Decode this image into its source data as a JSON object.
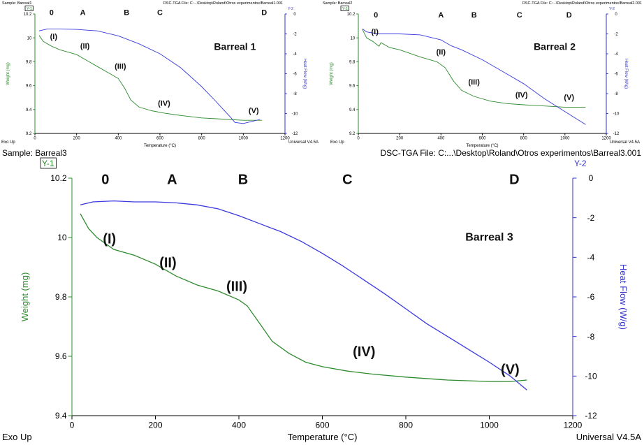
{
  "charts": [
    {
      "sample_label": "Sample: Barreal1",
      "file_label": "DSC-TGA File: C:...\\Desktop\\Roland\\Otros experimentos\\Barreal1.001",
      "y1_tag": "Y-1",
      "y2_tag": "Y-2",
      "xlabel": "Temperature (°C)",
      "ylabel_left": "Weight (mg)",
      "ylabel_right": "Heat Flow (W/g)",
      "corner_left": "Exo Up",
      "corner_right": "Universal V4.5A",
      "title": "Barreal 1",
      "chart_data": {
        "type": "line",
        "x_range": [
          0,
          1200
        ],
        "y_left_range": [
          9.2,
          10.2
        ],
        "y_right_range": [
          -12,
          0
        ],
        "x_ticks": [
          0,
          200,
          400,
          600,
          800,
          1000,
          1200
        ],
        "y_left_ticks": [
          9.2,
          9.4,
          9.6,
          9.8,
          10,
          10.2
        ],
        "y_right_ticks": [
          0,
          -2,
          -4,
          -6,
          -8,
          -10,
          -12
        ],
        "series": [
          {
            "axis": "left",
            "color": "#2e8b2e",
            "x": [
              20,
              40,
              80,
              120,
              160,
              200,
              240,
              280,
              320,
              360,
              400,
              430,
              460,
              500,
              560,
              620,
              700,
              800,
              900,
              1000,
              1060,
              1090
            ],
            "y": [
              10.02,
              9.97,
              9.93,
              9.9,
              9.88,
              9.86,
              9.82,
              9.78,
              9.74,
              9.7,
              9.66,
              9.58,
              9.48,
              9.42,
              9.39,
              9.37,
              9.35,
              9.33,
              9.32,
              9.31,
              9.31,
              9.31
            ]
          },
          {
            "axis": "right",
            "color": "#3a3adf",
            "x": [
              20,
              60,
              100,
              200,
              300,
              400,
              450,
              500,
              600,
              700,
              800,
              860,
              900,
              940,
              960,
              1000,
              1040,
              1080
            ],
            "y": [
              -1.7,
              -1.5,
              -1.5,
              -1.55,
              -1.7,
              -2.2,
              -2.6,
              -3.0,
              -4.0,
              -5.4,
              -7.3,
              -8.6,
              -9.5,
              -10.4,
              -10.9,
              -11.0,
              -10.8,
              -10.6
            ]
          }
        ]
      },
      "annotations": [
        {
          "text": "0",
          "x": 80,
          "y": 10.19,
          "bold": true
        },
        {
          "text": "A",
          "x": 230,
          "y": 10.19,
          "bold": true
        },
        {
          "text": "B",
          "x": 440,
          "y": 10.19,
          "bold": true
        },
        {
          "text": "C",
          "x": 600,
          "y": 10.19,
          "bold": true
        },
        {
          "text": "D",
          "x": 1100,
          "y": 10.19,
          "bold": true
        },
        {
          "text": "(I)",
          "x": 90,
          "y": 9.99,
          "bold": true
        },
        {
          "text": "(II)",
          "x": 240,
          "y": 9.91,
          "bold": true
        },
        {
          "text": "(III)",
          "x": 410,
          "y": 9.74,
          "bold": true
        },
        {
          "text": "(IV)",
          "x": 620,
          "y": 9.43,
          "bold": true
        },
        {
          "text": "(V)",
          "x": 1050,
          "y": 9.37,
          "bold": true
        },
        {
          "text": "Barreal 1",
          "x": 960,
          "y": 9.9,
          "bold": true,
          "title": true
        }
      ]
    },
    {
      "sample_label": "Sample: Barreal2",
      "file_label": "DSC-TGA File: C:...\\Desktop\\Roland\\Otros experimentos\\Barreal2.001",
      "y1_tag": "Y-1",
      "y2_tag": "Y-2",
      "xlabel": "Temperature (°C)",
      "ylabel_left": "Weight (mg)",
      "ylabel_right": "Heat Flow (W/g)",
      "corner_left": "Exo Up",
      "corner_right": "Universal V4.5A",
      "title": "Barreal 2",
      "chart_data": {
        "type": "line",
        "x_range": [
          0,
          1200
        ],
        "y_left_range": [
          9.2,
          10.2
        ],
        "y_right_range": [
          -12,
          0
        ],
        "x_ticks": [
          0,
          200,
          400,
          600,
          800,
          1000,
          1200
        ],
        "y_left_ticks": [
          9.2,
          9.4,
          9.6,
          9.8,
          10,
          10.2
        ],
        "y_right_ticks": [
          0,
          -2,
          -4,
          -6,
          -8,
          -10,
          -12
        ],
        "series": [
          {
            "axis": "left",
            "color": "#2e8b2e",
            "x": [
              20,
              40,
              70,
              100,
              110,
              150,
              200,
              300,
              380,
              420,
              460,
              500,
              560,
              640,
              720,
              800,
              900,
              1000,
              1100
            ],
            "y": [
              10.07,
              10.0,
              9.97,
              9.93,
              9.96,
              9.92,
              9.9,
              9.84,
              9.8,
              9.75,
              9.64,
              9.56,
              9.51,
              9.47,
              9.45,
              9.44,
              9.43,
              9.42,
              9.42
            ]
          },
          {
            "axis": "right",
            "color": "#3a3adf",
            "x": [
              20,
              40,
              100,
              200,
              300,
              400,
              450,
              500,
              600,
              700,
              800,
              900,
              1000,
              1100
            ],
            "y": [
              -1.5,
              -1.8,
              -2.0,
              -2.0,
              -2.1,
              -2.6,
              -3.2,
              -3.6,
              -4.6,
              -5.8,
              -7.0,
              -8.5,
              -9.8,
              -11.1
            ]
          }
        ]
      },
      "annotations": [
        {
          "text": "0",
          "x": 85,
          "y": 10.17,
          "bold": true
        },
        {
          "text": "A",
          "x": 400,
          "y": 10.17,
          "bold": true
        },
        {
          "text": "B",
          "x": 560,
          "y": 10.17,
          "bold": true
        },
        {
          "text": "C",
          "x": 780,
          "y": 10.17,
          "bold": true
        },
        {
          "text": "D",
          "x": 1020,
          "y": 10.17,
          "bold": true
        },
        {
          "text": "(I)",
          "x": 80,
          "y": 10.03,
          "bold": true
        },
        {
          "text": "(II)",
          "x": 400,
          "y": 9.86,
          "bold": true
        },
        {
          "text": "(III)",
          "x": 560,
          "y": 9.61,
          "bold": true
        },
        {
          "text": "(IV)",
          "x": 790,
          "y": 9.5,
          "bold": true
        },
        {
          "text": "(V)",
          "x": 1020,
          "y": 9.48,
          "bold": true
        },
        {
          "text": "Barreal 2",
          "x": 950,
          "y": 9.9,
          "bold": true,
          "title": true
        }
      ]
    },
    {
      "sample_label": "Sample: Barreal3",
      "file_label": "DSC-TGA File: C:...\\Desktop\\Roland\\Otros experimentos\\Barreal3.001",
      "y1_tag": "Y-1",
      "y2_tag": "Y-2",
      "xlabel": "Temperature (°C)",
      "ylabel_left": "Weight (mg)",
      "ylabel_right": "Heat Flow (W/g)",
      "corner_left": "Exo Up",
      "corner_right": "Universal V4.5A",
      "title": "Barreal 3",
      "chart_data": {
        "type": "line",
        "x_range": [
          0,
          1200
        ],
        "y_left_range": [
          9.4,
          10.2
        ],
        "y_right_range": [
          -12,
          0
        ],
        "x_ticks": [
          0,
          200,
          400,
          600,
          800,
          1000,
          1200
        ],
        "y_left_ticks": [
          9.4,
          9.6,
          9.8,
          10,
          10.2
        ],
        "y_right_ticks": [
          0,
          -2,
          -4,
          -6,
          -8,
          -10,
          -12
        ],
        "series": [
          {
            "axis": "left",
            "color": "#2e8b2e",
            "x": [
              20,
              40,
              60,
              80,
              100,
              150,
              200,
              250,
              300,
              350,
              400,
              420,
              440,
              460,
              480,
              520,
              560,
              600,
              660,
              720,
              800,
              900,
              1000,
              1050,
              1090
            ],
            "y": [
              10.08,
              10.03,
              10.0,
              9.98,
              9.96,
              9.94,
              9.91,
              9.87,
              9.84,
              9.82,
              9.79,
              9.77,
              9.73,
              9.69,
              9.65,
              9.61,
              9.58,
              9.565,
              9.55,
              9.54,
              9.53,
              9.52,
              9.515,
              9.515,
              9.52
            ]
          },
          {
            "axis": "right",
            "color": "#3a3adf",
            "x": [
              20,
              50,
              100,
              150,
              200,
              250,
              300,
              350,
              400,
              450,
              500,
              550,
              600,
              650,
              700,
              750,
              800,
              850,
              900,
              950,
              1000,
              1050,
              1090
            ],
            "y": [
              -1.35,
              -1.2,
              -1.15,
              -1.2,
              -1.2,
              -1.25,
              -1.35,
              -1.55,
              -1.9,
              -2.3,
              -2.7,
              -3.2,
              -3.8,
              -4.45,
              -5.15,
              -5.85,
              -6.6,
              -7.35,
              -8.0,
              -8.65,
              -9.3,
              -10.0,
              -10.7
            ]
          }
        ]
      },
      "annotations": [
        {
          "text": "0",
          "x": 80,
          "y": 10.18,
          "bold": true
        },
        {
          "text": "A",
          "x": 240,
          "y": 10.18,
          "bold": true
        },
        {
          "text": "B",
          "x": 410,
          "y": 10.18,
          "bold": true
        },
        {
          "text": "C",
          "x": 660,
          "y": 10.18,
          "bold": true
        },
        {
          "text": "D",
          "x": 1060,
          "y": 10.18,
          "bold": true
        },
        {
          "text": "(I)",
          "x": 90,
          "y": 9.98,
          "bold": true
        },
        {
          "text": "(II)",
          "x": 230,
          "y": 9.9,
          "bold": true
        },
        {
          "text": "(III)",
          "x": 395,
          "y": 9.82,
          "bold": true
        },
        {
          "text": "(IV)",
          "x": 700,
          "y": 9.6,
          "bold": true
        },
        {
          "text": "(V)",
          "x": 1050,
          "y": 9.54,
          "bold": true
        },
        {
          "text": "Barreal 3",
          "x": 1000,
          "y": 9.99,
          "bold": true,
          "title": true
        }
      ]
    }
  ]
}
